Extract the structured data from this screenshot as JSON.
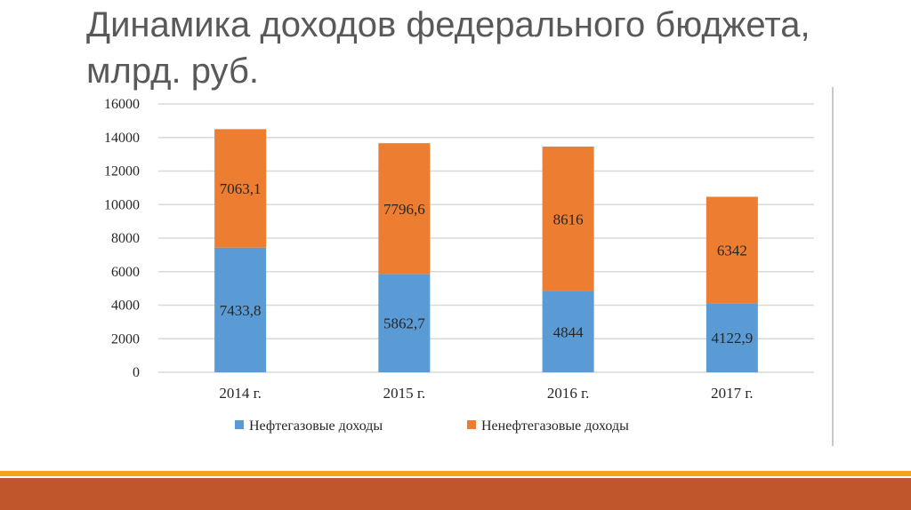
{
  "title": {
    "line1": "Динамика доходов федерального бюджета,",
    "line2": "млрд. руб."
  },
  "colors": {
    "oil_gas": "#5b9bd5",
    "non_oil_gas": "#ed7d31",
    "band_main": "#c0562c",
    "band_thin": "#f3a21d",
    "grid": "#d9d9d9",
    "axis_text": "#262626"
  },
  "chart_data": {
    "type": "bar",
    "stacked": true,
    "categories": [
      "2014 г.",
      "2015 г.",
      "2016 г.",
      "2017 г."
    ],
    "series": [
      {
        "name": "Нефтегазовые доходы",
        "values": [
          7433.8,
          5862.7,
          4844,
          4122.9
        ],
        "labels": [
          "7433,8",
          "5862,7",
          "4844",
          "4122,9"
        ],
        "color": "#5b9bd5"
      },
      {
        "name": "Ненефтегазовые доходы",
        "values": [
          7063.1,
          7796.6,
          8616,
          6342
        ],
        "labels": [
          "7063,1",
          "7796,6",
          "8616",
          "6342"
        ],
        "color": "#ed7d31"
      }
    ],
    "ylim": [
      0,
      16000
    ],
    "yticks": [
      "0",
      "2000",
      "4000",
      "6000",
      "8000",
      "10000",
      "12000",
      "14000",
      "16000"
    ],
    "grid": true,
    "legend": "bottom"
  }
}
